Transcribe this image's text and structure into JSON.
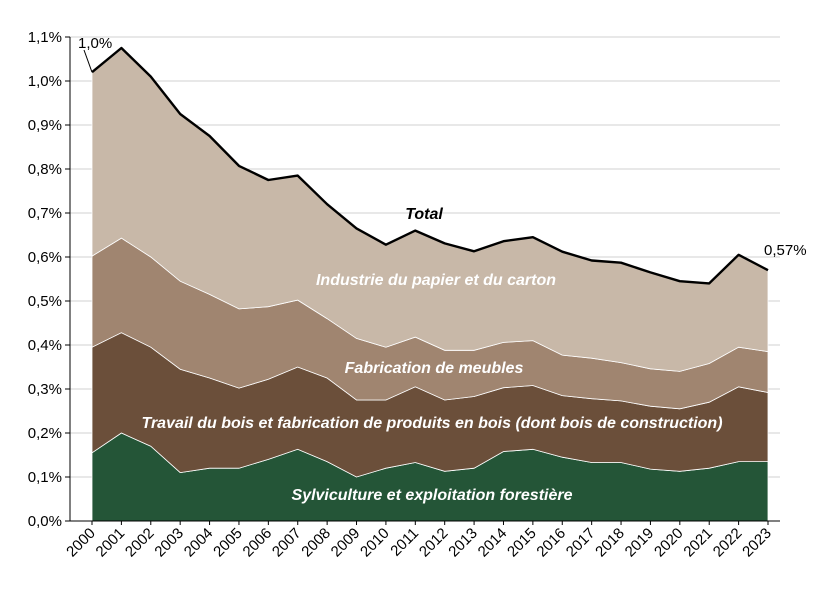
{
  "chart_data": {
    "type": "area",
    "stacked": true,
    "categories": [
      "2000",
      "2001",
      "2002",
      "2003",
      "2004",
      "2005",
      "2006",
      "2007",
      "2008",
      "2009",
      "2010",
      "2011",
      "2012",
      "2013",
      "2014",
      "2015",
      "2016",
      "2017",
      "2018",
      "2019",
      "2020",
      "2021",
      "2022",
      "2023"
    ],
    "yticks": [
      "0,0%",
      "0,1%",
      "0,2%",
      "0,3%",
      "0,4%",
      "0,5%",
      "0,6%",
      "0,7%",
      "0,8%",
      "0,9%",
      "1,0%",
      "1,1%"
    ],
    "ylim": [
      0,
      1.1
    ],
    "grid": true,
    "series": [
      {
        "name": "Sylviculture et exploitation forestière",
        "color": "#245537",
        "label_color": "#ffffff",
        "values": [
          0.155,
          0.2,
          0.17,
          0.11,
          0.12,
          0.12,
          0.14,
          0.163,
          0.135,
          0.1,
          0.12,
          0.133,
          0.113,
          0.12,
          0.158,
          0.163,
          0.145,
          0.133,
          0.133,
          0.118,
          0.113,
          0.12,
          0.135,
          0.135
        ]
      },
      {
        "name": "Travail du bois et fabrication de produits en bois (dont bois de construction)",
        "color": "#6b4f3a",
        "label_color": "#ffffff",
        "values": [
          0.24,
          0.228,
          0.225,
          0.235,
          0.205,
          0.182,
          0.182,
          0.187,
          0.19,
          0.175,
          0.155,
          0.172,
          0.162,
          0.163,
          0.145,
          0.145,
          0.14,
          0.145,
          0.14,
          0.143,
          0.142,
          0.15,
          0.17,
          0.157
        ]
      },
      {
        "name": "Fabrication de meubles",
        "color": "#a08570",
        "label_color": "#ffffff",
        "values": [
          0.207,
          0.215,
          0.205,
          0.2,
          0.19,
          0.18,
          0.165,
          0.152,
          0.135,
          0.14,
          0.12,
          0.113,
          0.113,
          0.105,
          0.103,
          0.102,
          0.092,
          0.092,
          0.087,
          0.085,
          0.085,
          0.088,
          0.09,
          0.093
        ]
      },
      {
        "name": "Industrie du papier et du carton",
        "color": "#c8b8a8",
        "label_color": "#ffffff",
        "values": [
          0.418,
          0.432,
          0.41,
          0.38,
          0.36,
          0.325,
          0.288,
          0.283,
          0.26,
          0.25,
          0.233,
          0.242,
          0.243,
          0.225,
          0.23,
          0.235,
          0.235,
          0.222,
          0.227,
          0.219,
          0.205,
          0.182,
          0.21,
          0.185
        ]
      }
    ],
    "total": {
      "name": "Total",
      "color": "#000000",
      "values": [
        1.02,
        1.075,
        1.01,
        0.925,
        0.875,
        0.807,
        0.775,
        0.785,
        0.72,
        0.665,
        0.628,
        0.66,
        0.631,
        0.613,
        0.636,
        0.645,
        0.612,
        0.592,
        0.587,
        0.565,
        0.545,
        0.54,
        0.605,
        0.57
      ]
    },
    "annotations": {
      "start_value": "1,0%",
      "end_value": "0,57%"
    }
  }
}
